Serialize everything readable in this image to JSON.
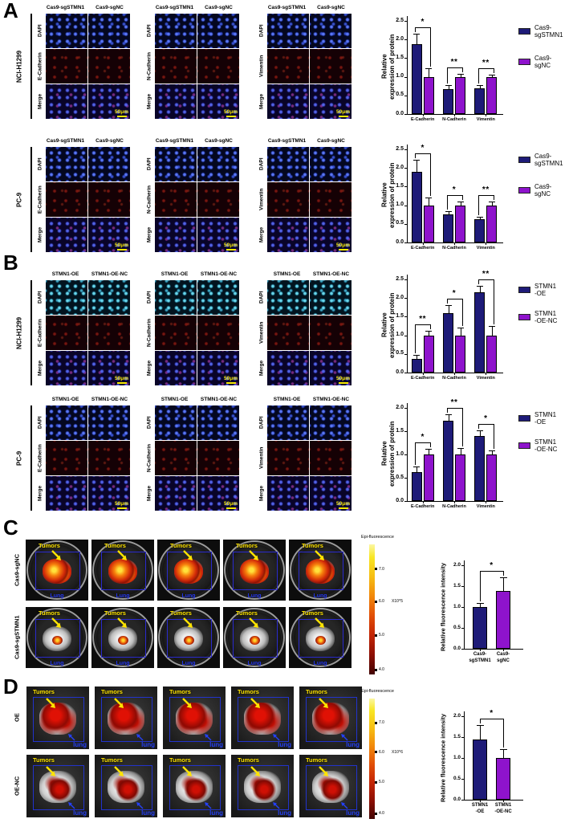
{
  "figure": {
    "panels": {
      "A": "A",
      "B": "B",
      "C": "C",
      "D": "D"
    }
  },
  "colors": {
    "navy": "#1e1b78",
    "purple": "#8e13cc",
    "tumor_label_yellow": "#ffe400",
    "lung_label_blue": "#2335e8",
    "scalebar_yellow": "#f7ea00"
  },
  "microscopy": {
    "A": {
      "columns": [
        "Cas9-sgSTMN1",
        "Cas9-sgNC"
      ],
      "dapi_label": "DAPI",
      "merge_label": "Merge",
      "scale_bar": "50μm",
      "cell_lines": [
        {
          "name": "NCI-H1299",
          "markers": [
            "E-Cadherin",
            "N-Cadherin",
            "Vimentin"
          ]
        },
        {
          "name": "PC-9",
          "markers": [
            "E-Cadherin",
            "N-Cadherin",
            "Vimentin"
          ]
        }
      ]
    },
    "B": {
      "columns": [
        "STMN1-OE",
        "STMN1-OE-NC"
      ],
      "dapi_label": "DAPI",
      "merge_label": "Merge",
      "scale_bar": "50μm",
      "cell_lines": [
        {
          "name": "NCI-H1299",
          "markers": [
            "E-Cadherin",
            "N-Cadherin",
            "Vimentin"
          ]
        },
        {
          "name": "PC-9",
          "markers": [
            "E-Cadherin",
            "N-Cadherin",
            "Vimentin"
          ]
        }
      ]
    }
  },
  "in_vivo": {
    "C": {
      "rows": [
        {
          "label": "Cas9-sgNC",
          "signal": "high"
        },
        {
          "label": "Cas9-sgSTMN1",
          "signal": "low"
        }
      ],
      "n_images": 5,
      "tumor_label": "Tumors",
      "lung_label": "Lung",
      "colorbar": {
        "title": "Epi-fluorescence",
        "ticks": [
          "7.0",
          "6.0",
          "5.0",
          "4.0"
        ],
        "exp": "X10^5"
      }
    },
    "D": {
      "rows": [
        {
          "label": "OE",
          "signal": "high"
        },
        {
          "label": "OE-NC",
          "signal": "medium"
        }
      ],
      "n_images": 5,
      "tumor_label": "Tumors",
      "lung_label": "lung",
      "colorbar": {
        "title": "Epi-fluorescence",
        "ticks": [
          "7.0",
          "6.0",
          "5.0",
          "4.0"
        ],
        "exp": "X10^6"
      }
    }
  },
  "chart_data": [
    {
      "name": "A-NCI-H1299-protein-expression",
      "type": "bar",
      "categories": [
        "E-Cadherin",
        "N-Cadherin",
        "Vimentin"
      ],
      "series": [
        {
          "name": "Cas9-\nsgSTMN1",
          "color_key": "navy",
          "values": [
            1.87,
            0.67,
            0.68
          ],
          "errors": [
            0.28,
            0.1,
            0.1
          ]
        },
        {
          "name": "Cas9-\nsgNC",
          "color_key": "purple",
          "values": [
            1.0,
            1.0,
            1.0
          ],
          "errors": [
            0.23,
            0.07,
            0.05
          ]
        }
      ],
      "significance": [
        "*",
        "**",
        "**"
      ],
      "ylabel": "Relative\nexpression of protein",
      "ylim": [
        0,
        2.5
      ],
      "ystep": 0.5,
      "legend_position": "right",
      "grid": false
    },
    {
      "name": "A-PC-9-protein-expression",
      "type": "bar",
      "categories": [
        "E-Cadherin",
        "N-Cadherin",
        "Vimentin"
      ],
      "series": [
        {
          "name": "Cas9-\nsgSTMN1",
          "color_key": "navy",
          "values": [
            1.9,
            0.75,
            0.62
          ],
          "errors": [
            0.33,
            0.08,
            0.06
          ]
        },
        {
          "name": "Cas9-\nsgNC",
          "color_key": "purple",
          "values": [
            1.0,
            1.0,
            1.0
          ],
          "errors": [
            0.2,
            0.1,
            0.09
          ]
        }
      ],
      "significance": [
        "*",
        "*",
        "**"
      ],
      "ylabel": "Relative\nexpression of protein",
      "ylim": [
        0,
        2.5
      ],
      "ystep": 0.5,
      "legend_position": "right",
      "grid": false
    },
    {
      "name": "B-NCI-H1299-protein-expression",
      "type": "bar",
      "categories": [
        "E-Cadherin",
        "N-Cadherin",
        "Vimentin"
      ],
      "series": [
        {
          "name": "STMN1\n-OE",
          "color_key": "navy",
          "values": [
            0.37,
            1.6,
            2.15
          ],
          "errors": [
            0.11,
            0.2,
            0.17
          ]
        },
        {
          "name": "STMN1\n-OE-NC",
          "color_key": "purple",
          "values": [
            1.0,
            1.0,
            1.0
          ],
          "errors": [
            0.12,
            0.2,
            0.25
          ]
        }
      ],
      "significance": [
        "**",
        "*",
        "**"
      ],
      "ylabel": "Relative\nexpression of protein",
      "ylim": [
        0,
        2.5
      ],
      "ystep": 0.5,
      "legend_position": "right",
      "grid": false
    },
    {
      "name": "B-PC-9-protein-expression",
      "type": "bar",
      "categories": [
        "E-Cadherin",
        "N-Cadherin",
        "Vimentin"
      ],
      "series": [
        {
          "name": "STMN1\n-OE",
          "color_key": "navy",
          "values": [
            0.62,
            1.73,
            1.39
          ],
          "errors": [
            0.12,
            0.14,
            0.13
          ]
        },
        {
          "name": "STMN1\n-OE-NC",
          "color_key": "purple",
          "values": [
            1.0,
            1.0,
            1.0
          ],
          "errors": [
            0.12,
            0.14,
            0.08
          ]
        }
      ],
      "significance": [
        "*",
        "**",
        "*"
      ],
      "ylabel": "Relative\nexpression of protein",
      "ylim": [
        0,
        2.0
      ],
      "ystep": 0.5,
      "legend_position": "right",
      "grid": false
    },
    {
      "name": "C-lung-fluorescence-intensity",
      "type": "bar",
      "categories": [
        "Cas9-\nsgSTMN1",
        "Cas9-\nsgNC"
      ],
      "values": [
        1.0,
        1.38
      ],
      "errors": [
        0.1,
        0.33
      ],
      "bar_color_keys": [
        "navy",
        "purple"
      ],
      "significance": "*",
      "ylabel": "Relative fluorescence intensity",
      "ylim": [
        0,
        2.0
      ],
      "ystep": 0.5,
      "legend_position": "none",
      "grid": false
    },
    {
      "name": "D-lung-fluorescence-intensity",
      "type": "bar",
      "categories": [
        "STMN1\n-OE",
        "STMN1\n-OE-NC"
      ],
      "values": [
        1.44,
        1.0
      ],
      "errors": [
        0.34,
        0.21
      ],
      "bar_color_keys": [
        "navy",
        "purple"
      ],
      "significance": "*",
      "ylabel": "Relative fluorescence intensity",
      "ylim": [
        0,
        2.0
      ],
      "ystep": 0.5,
      "legend_position": "none",
      "grid": false
    }
  ]
}
